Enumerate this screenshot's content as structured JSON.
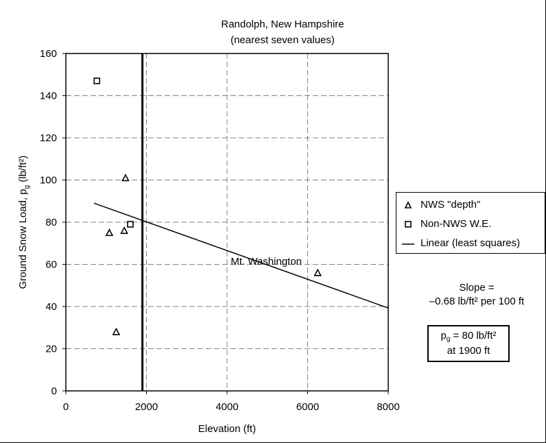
{
  "chart_data": {
    "type": "scatter",
    "title": "Randolph, New Hampshire",
    "subtitle": "(nearest seven values)",
    "xlabel": "Elevation (ft)",
    "ylabel_prefix": "Ground Snow Load, p",
    "ylabel_sub": "g",
    "ylabel_suffix": " (lb/ft²)",
    "xlim": [
      0,
      8000
    ],
    "ylim": [
      0,
      160
    ],
    "x_ticks": [
      "0",
      "2000",
      "4000",
      "6000",
      "8000"
    ],
    "y_ticks": [
      "0",
      "20",
      "40",
      "60",
      "80",
      "100",
      "120",
      "140",
      "160"
    ],
    "grid": "dashed vertical and horizontal",
    "series": [
      {
        "name": "NWS \"depth\"",
        "marker": "triangle",
        "points": [
          [
            1080,
            75
          ],
          [
            1450,
            76
          ],
          [
            1480,
            101
          ],
          [
            1250,
            28
          ],
          [
            6250,
            56
          ]
        ]
      },
      {
        "name": "Non-NWS W.E.",
        "marker": "square",
        "points": [
          [
            770,
            147
          ],
          [
            1600,
            79
          ]
        ]
      },
      {
        "name": "Linear (least squares)",
        "marker": "line",
        "points": [
          [
            700,
            89
          ],
          [
            8000,
            39.3
          ]
        ]
      }
    ],
    "reference_line": {
      "x": 1900
    },
    "annotation": "Mt. Washington",
    "legend_position": "right"
  },
  "slope_box": {
    "line1": "Slope =",
    "line2": "–0.68 lb/ft² per 100 ft"
  },
  "pg_box": {
    "prefix": "p",
    "sub": "g",
    "suffix": " = 80 lb/ft²",
    "line2": "at 1900 ft"
  },
  "colors": {
    "axes": "#000000",
    "grid": "#808080",
    "background": "#ffffff"
  }
}
